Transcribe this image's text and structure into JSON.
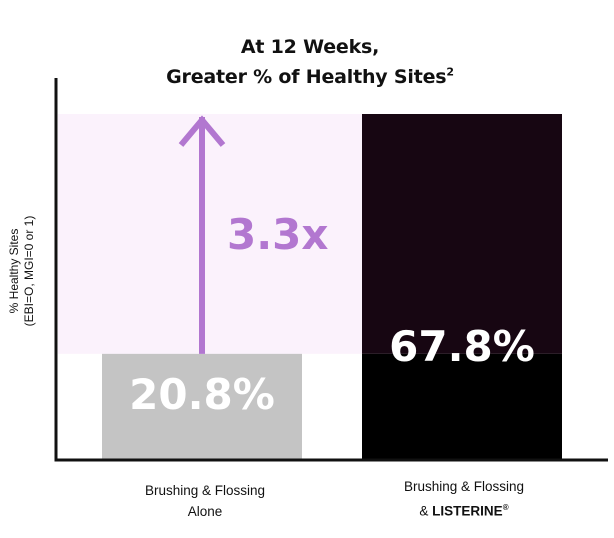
{
  "title_line1": "At 12 Weeks,",
  "title_line2": "Greater % of Healthy Sites",
  "title_sup": "2",
  "ylabel_line1": "% Healthy Sites",
  "ylabel_line2": "(EBI=O, MGI=0 or 1)",
  "categories": [
    {
      "line1": "Brushing & Flossing",
      "line2": "Alone"
    },
    {
      "line1": "Brushing & Flossing",
      "line2_prefix": "& ",
      "brand": "LISTERINE",
      "reg": "®"
    }
  ],
  "colors": {
    "bar_alone": "#c4c4c4",
    "bar_listerine": "#000000",
    "highlight_band": "#fbf2fc",
    "highlight_dark": "#170612",
    "arrow": "#b277d0",
    "axis": "#111111",
    "label_text": "#ffffff"
  },
  "chart_data": {
    "type": "bar",
    "title": "At 12 Weeks, Greater % of Healthy Sites",
    "ylabel": "% Healthy Sites (EBI=O, MGI=0 or 1)",
    "categories": [
      "Brushing & Flossing Alone",
      "Brushing & Flossing & LISTERINE®"
    ],
    "values": [
      20.8,
      67.8
    ],
    "value_labels": [
      "20.8%",
      "67.8%"
    ],
    "ylim": [
      0,
      67.8
    ],
    "annotation": {
      "text": "3.3x",
      "from_category": 0,
      "to_value": 67.8
    },
    "grid": false
  }
}
